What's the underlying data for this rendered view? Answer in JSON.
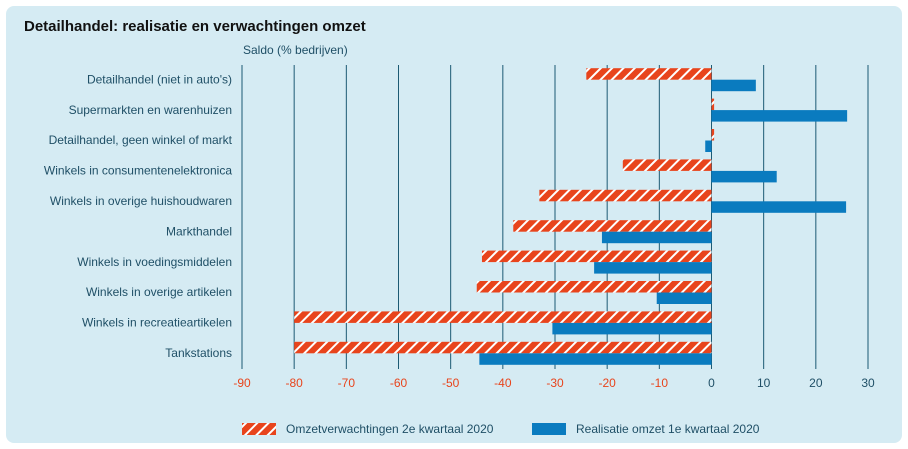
{
  "chart_data": {
    "type": "hbar",
    "title": "Detailhandel: realisatie en verwachtingen omzet",
    "x_label": "Saldo (% bedrijven)",
    "categories": [
      "Detailhandel (niet in auto's)",
      "Supermarkten en warenhuizen",
      "Detailhandel, geen winkel of markt",
      "Winkels in consumentenelektronica",
      "Winkels in overige huishoudwaren",
      "Markthandel",
      "Winkels in voedingsmiddelen",
      "Winkels in overige artikelen",
      "Winkels in recreatieartikelen",
      "Tankstations"
    ],
    "series": [
      {
        "name": "Omzetverwachtingen 2e kwartaal 2020",
        "color": "#e8441c",
        "pattern": "hatch",
        "values": [
          -24,
          0.5,
          0.5,
          -17,
          -33,
          -38,
          -44,
          -45,
          -80,
          -80
        ]
      },
      {
        "name": "Realisatie omzet 1e kwartaal 2020",
        "color": "#0a7bbf",
        "values": [
          8.5,
          26,
          -1.2,
          12.5,
          25.8,
          -21,
          -22.5,
          -10.5,
          -30.5,
          -44.5
        ]
      }
    ],
    "xlim": [
      -90,
      30
    ],
    "xticks": [
      -90,
      -80,
      -70,
      -60,
      -50,
      -40,
      -30,
      -20,
      -10,
      0,
      10,
      20,
      30
    ],
    "negative_tick_color": "#e8441c",
    "grid": true,
    "grid_color": "#1c5a73",
    "legend": "bottom"
  }
}
